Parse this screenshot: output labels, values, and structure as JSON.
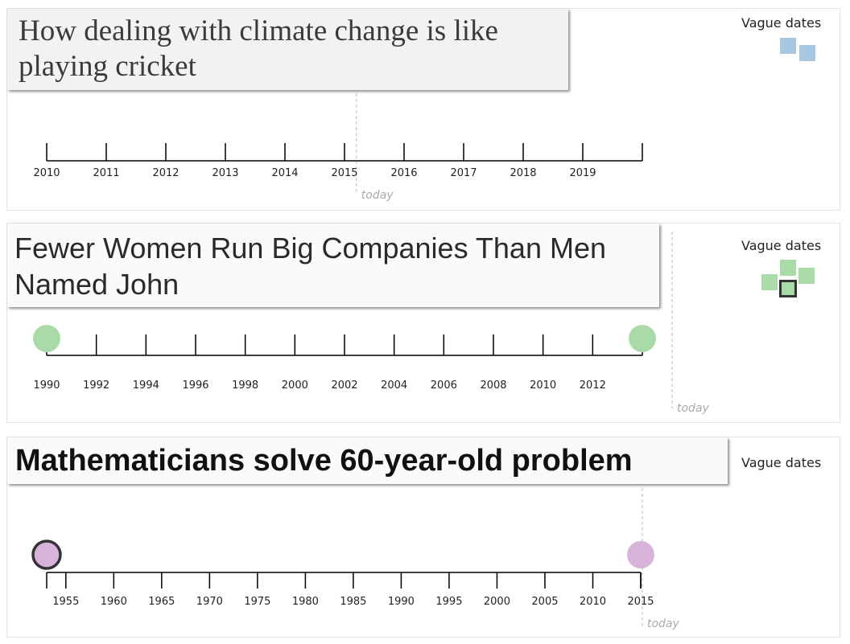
{
  "chart_data": [
    {
      "type": "timeline",
      "title": "How dealing with climate change is like playing cricket",
      "vague_label": "Vague dates",
      "vague_color": "#a8c7e0",
      "x_ticks": [
        "2010",
        "2011",
        "2012",
        "2013",
        "2014",
        "2015",
        "2016",
        "2017",
        "2018",
        "2019"
      ],
      "xlim": [
        2010,
        2020
      ],
      "today": 2015.2,
      "today_label": "today",
      "points": []
    },
    {
      "type": "timeline",
      "title": "Fewer Women Run Big Companies Than Men Named John",
      "vague_label": "Vague dates",
      "vague_color": "#a9dba8",
      "x_ticks": [
        "1990",
        "1992",
        "1994",
        "1996",
        "1998",
        "2000",
        "2002",
        "2004",
        "2006",
        "2008",
        "2010",
        "2012"
      ],
      "xlim": [
        1990,
        2014
      ],
      "today": 2015.2,
      "today_label": "today",
      "points": [
        {
          "x": 1990,
          "color": "#a9dba8",
          "selected": false
        },
        {
          "x": 2014,
          "color": "#a9dba8",
          "selected": false
        }
      ]
    },
    {
      "type": "timeline",
      "title": "Mathematicians solve 60-year-old problem",
      "vague_label": "Vague dates",
      "vague_color": "#d7b3d9",
      "x_ticks": [
        "1955",
        "1960",
        "1965",
        "1970",
        "1975",
        "1980",
        "1985",
        "1990",
        "1995",
        "2000",
        "2005",
        "2010",
        "2015"
      ],
      "xlim": [
        1953,
        2015
      ],
      "today": 2015.2,
      "today_label": "today",
      "points": [
        {
          "x": 1953,
          "color": "#d7b3d9",
          "selected": true
        },
        {
          "x": 2015,
          "color": "#d7b3d9",
          "selected": false
        }
      ]
    }
  ]
}
